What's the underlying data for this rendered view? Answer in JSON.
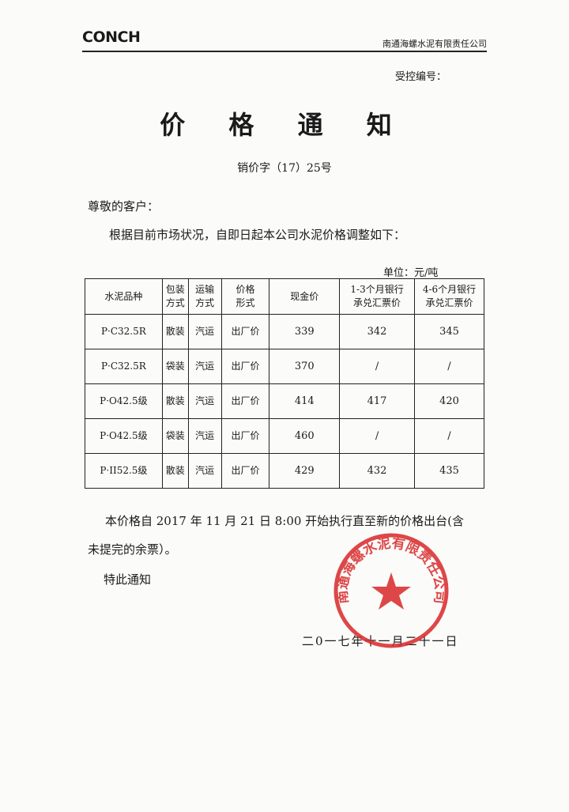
{
  "header": {
    "logo": "CONCH",
    "company": "南通海螺水泥有限责任公司",
    "control_no_label": "受控编号："
  },
  "title": "价 格 通 知",
  "doc_no": "销价字（17）25号",
  "greeting": "尊敬的客户：",
  "intro": "根据目前市场状况，自即日起本公司水泥价格调整如下：",
  "unit": "单位：元/吨",
  "table": {
    "headers": [
      "水泥品种",
      "包装方式",
      "运输方式",
      "价格形式",
      "现金价",
      "1-3个月银行承兑汇票价",
      "4-6个月银行承兑汇票价"
    ],
    "rows": [
      [
        "P·C32.5R",
        "散装",
        "汽运",
        "出厂价",
        "339",
        "342",
        "345"
      ],
      [
        "P·C32.5R",
        "袋装",
        "汽运",
        "出厂价",
        "370",
        "/",
        "/"
      ],
      [
        "P·O42.5级",
        "散装",
        "汽运",
        "出厂价",
        "414",
        "417",
        "420"
      ],
      [
        "P·O42.5级",
        "袋装",
        "汽运",
        "出厂价",
        "460",
        "/",
        "/"
      ],
      [
        "P·II52.5级",
        "散装",
        "汽运",
        "出厂价",
        "429",
        "432",
        "435"
      ]
    ]
  },
  "body": {
    "line1": "本价格自 2017 年 11 月 21 日 8:00 开始执行直至新的价格出台(含",
    "line2": "未提完的余票）。",
    "closing": "特此通知",
    "date": "二0一七年十一月二十一日"
  },
  "seal": {
    "text": "南通海螺水泥有限责任公司",
    "color": "#d8282a"
  }
}
